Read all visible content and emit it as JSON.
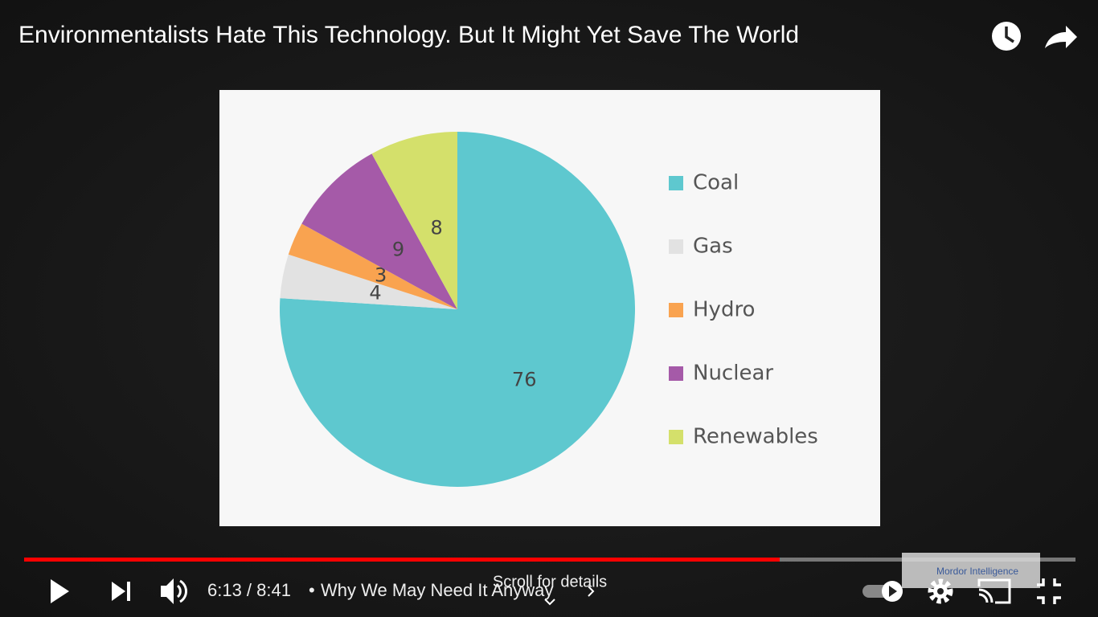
{
  "video": {
    "title": "Environmentalists Hate This Technology. But It Might Yet Save The World",
    "time": "6:13 / 8:41",
    "separator": "•",
    "chapter": "Why We May Need It Anyway",
    "scroll_hint": "Scroll for details",
    "watermark": "Mordor Intelligence"
  },
  "chart_data": {
    "type": "pie",
    "categories": [
      "Coal",
      "Gas",
      "Hydro",
      "Nuclear",
      "Renewables"
    ],
    "values": [
      76,
      4,
      3,
      9,
      8
    ],
    "colors": [
      "#5ec8cf",
      "#e2e2e2",
      "#f9a350",
      "#a55aa8",
      "#d4e06b"
    ]
  }
}
